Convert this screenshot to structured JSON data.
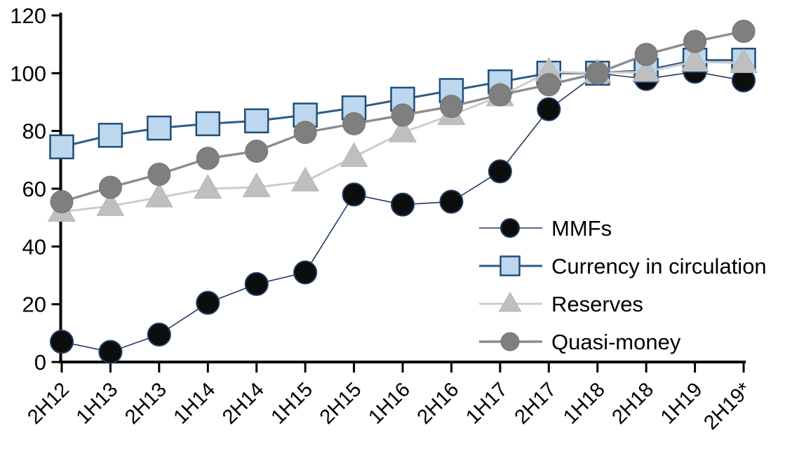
{
  "chart_data": {
    "type": "line",
    "title": "",
    "xlabel": "",
    "ylabel": "",
    "ylim": [
      0,
      120
    ],
    "ytick_step": 20,
    "y_tick_labels": [
      "0",
      "20",
      "40",
      "60",
      "80",
      "100",
      "120"
    ],
    "grid": false,
    "legend_position": "inside-right",
    "axis_color": "#000000",
    "categories": [
      "2H12",
      "1H13",
      "2H13",
      "1H14",
      "2H14",
      "1H15",
      "2H15",
      "1H16",
      "2H16",
      "1H17",
      "2H17",
      "1H18",
      "2H18",
      "1H19",
      "2H19*"
    ],
    "series": [
      {
        "name": "MMFs",
        "marker": "circle",
        "line_color": "#1f3864",
        "line_width": 1.6,
        "marker_fill": "#0d0d0d",
        "marker_stroke": "#1f3864",
        "marker_stroke_width": 2,
        "values": [
          7,
          3.5,
          9.5,
          20.5,
          27,
          31,
          58,
          54.5,
          55.5,
          66,
          87.5,
          100,
          98,
          100.5,
          97.5
        ]
      },
      {
        "name": "Currency in circulation",
        "marker": "square",
        "line_color": "#2b5c8a",
        "line_width": 3,
        "marker_fill": "#bdd7ee",
        "marker_stroke": "#1f4e79",
        "marker_stroke_width": 2.5,
        "values": [
          74.5,
          78.5,
          81,
          82.5,
          83.5,
          85.5,
          88,
          91,
          94,
          97,
          100,
          100,
          101,
          104.5,
          104.5
        ]
      },
      {
        "name": "Reserves",
        "marker": "triangle",
        "line_color": "#cccccc",
        "line_width": 3,
        "marker_fill": "#bfbfbf",
        "marker_stroke": "#b5b5b5",
        "marker_stroke_width": 1,
        "values": [
          52,
          54,
          57,
          60,
          60.5,
          62.5,
          71,
          79.5,
          85.5,
          92,
          100.5,
          100,
          100.5,
          104,
          103.5
        ]
      },
      {
        "name": "Quasi-money",
        "marker": "circle",
        "line_color": "#8c8c8c",
        "line_width": 3.4,
        "marker_fill": "#7f7f7f",
        "marker_stroke": "#757575",
        "marker_stroke_width": 1,
        "values": [
          55.5,
          60.5,
          65,
          70.5,
          73,
          79.5,
          82.5,
          85.5,
          88.5,
          92.5,
          96,
          100,
          106.5,
          111,
          114.5
        ]
      }
    ]
  }
}
